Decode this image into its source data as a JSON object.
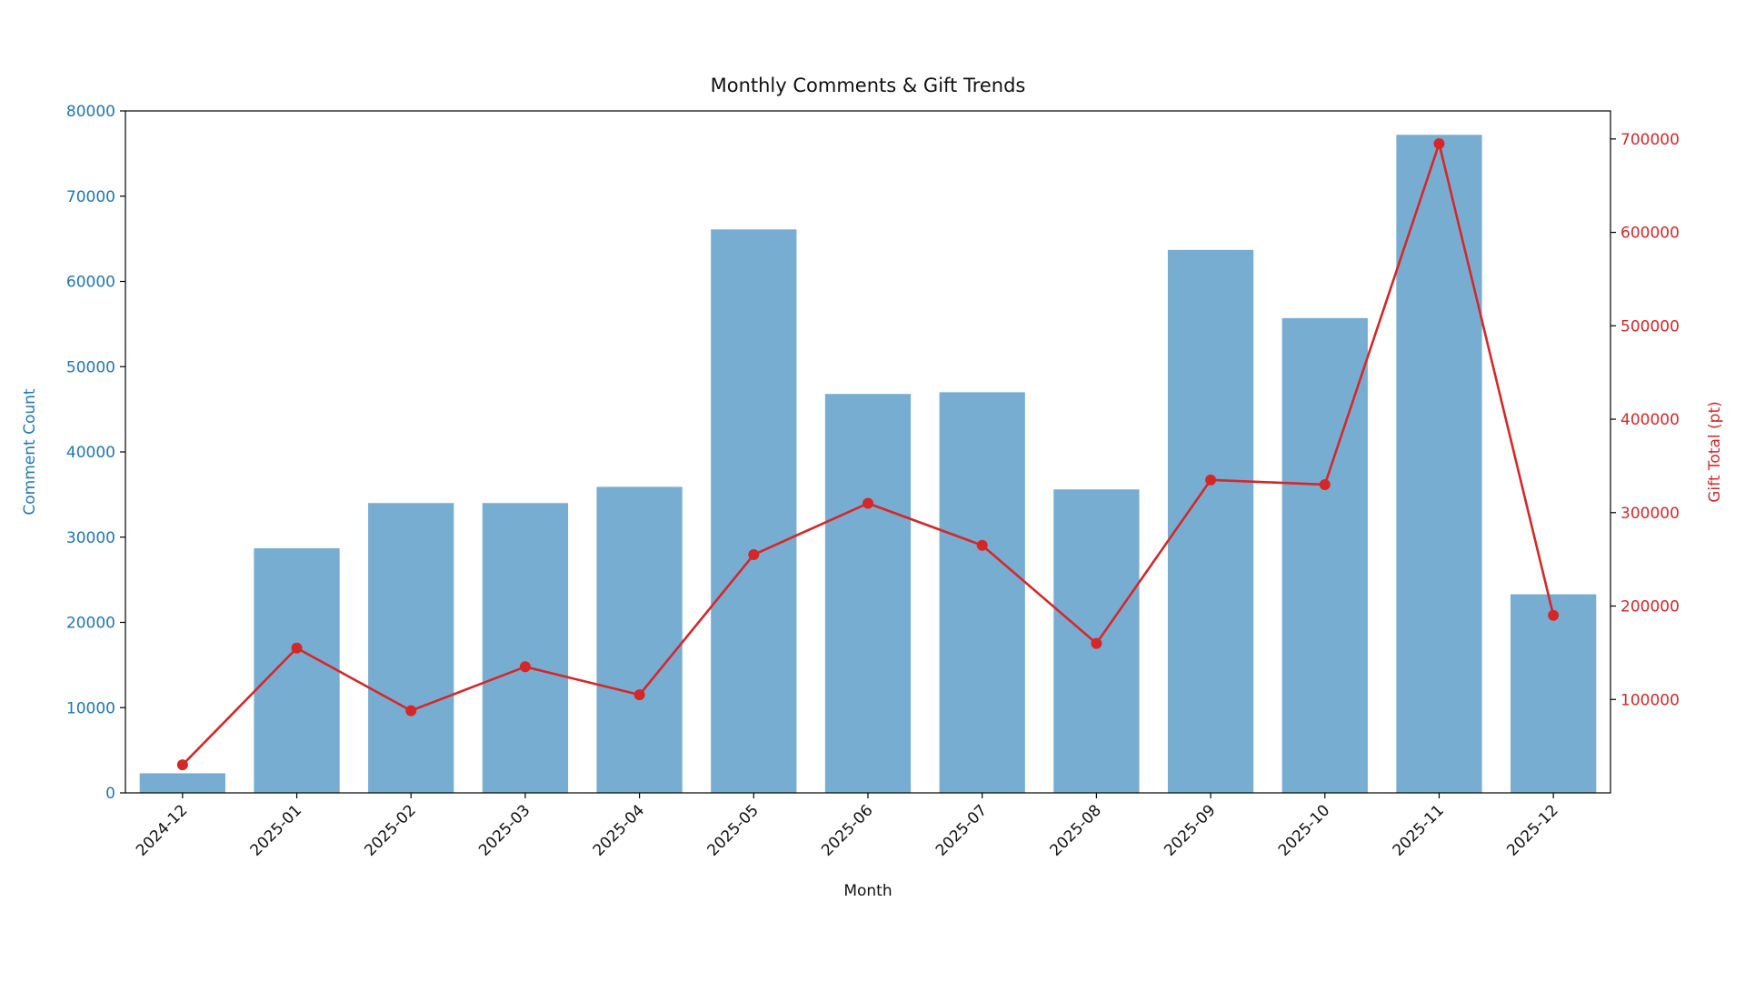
{
  "page": {
    "background": "#ffffff"
  },
  "chart_data": {
    "type": "bar",
    "title": "Monthly Comments & Gift Trends",
    "xlabel": "Month",
    "categories": [
      "2024-12",
      "2025-01",
      "2025-02",
      "2025-03",
      "2025-04",
      "2025-05",
      "2025-06",
      "2025-07",
      "2025-08",
      "2025-09",
      "2025-10",
      "2025-11",
      "2025-12"
    ],
    "series": [
      {
        "name": "Comment Count",
        "type": "bar",
        "axis": "left",
        "color": "#78add2",
        "values": [
          2300,
          28700,
          34000,
          34000,
          35900,
          66100,
          46800,
          47000,
          35600,
          63700,
          55700,
          77200,
          23300
        ]
      },
      {
        "name": "Gift Total (pt)",
        "type": "line",
        "axis": "right",
        "color": "#d62728",
        "marker": "circle",
        "values": [
          30000,
          155000,
          88000,
          135000,
          105000,
          255000,
          310000,
          265000,
          160000,
          335000,
          330000,
          695000,
          190000
        ]
      }
    ],
    "left_axis": {
      "label": "Comment Count",
      "color": "#1f77b4",
      "min": 0,
      "max": 80000,
      "ticks": [
        0,
        10000,
        20000,
        30000,
        40000,
        50000,
        60000,
        70000,
        80000
      ]
    },
    "right_axis": {
      "label": "Gift Total (pt)",
      "color": "#d62728",
      "min": 0,
      "max": 730000,
      "ticks": [
        100000,
        200000,
        300000,
        400000,
        500000,
        600000,
        700000
      ]
    },
    "grid": "off",
    "legend": "none",
    "x_tick_rotation": 45
  }
}
